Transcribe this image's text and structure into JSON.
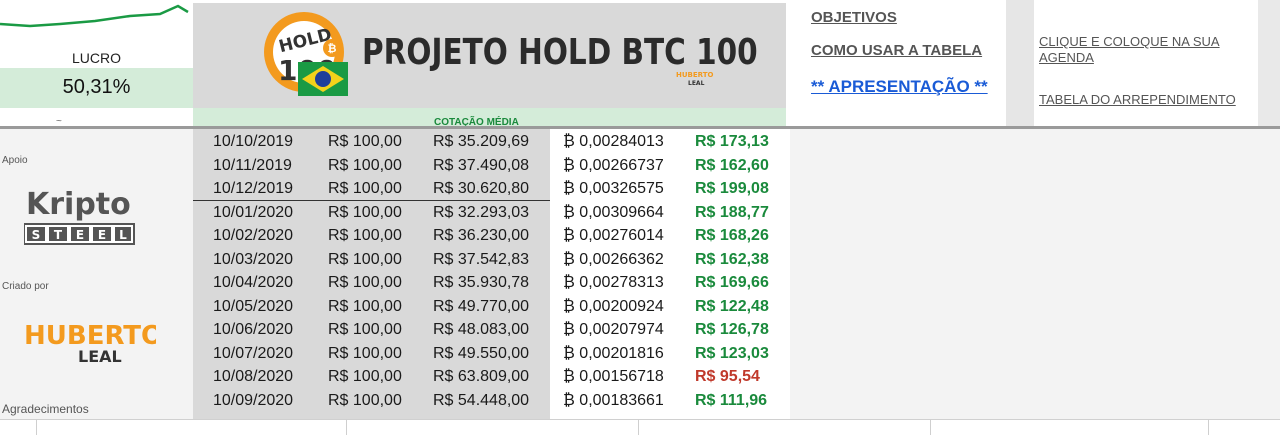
{
  "summary": {
    "label": "LUCRO",
    "value": "50,31%",
    "cut_label": "~"
  },
  "banner": {
    "title": "PROJETO HOLD BTC 100",
    "logo_text_top": "HOLD",
    "logo_text_bottom": "100",
    "mini_logo_top": "HUBERTO",
    "mini_logo_bottom": "LEAL",
    "column_header": "COTAÇÃO MÉDIA"
  },
  "links": {
    "objetivos": "OBJETIVOS",
    "como_usar": "COMO USAR A TABELA",
    "apresentacao": "** APRESENTAÇÃO **",
    "agenda": "CLIQUE E COLOQUE NA SUA AGENDA",
    "arrependimento": "TABELA DO ARREPENDIMENTO"
  },
  "sidebar": {
    "apoio": "Apoio",
    "criado_por": "Criado por",
    "agradecimentos": "Agradecimentos",
    "kripto_word": "Kripto",
    "steel_letters": [
      "S",
      "T",
      "E",
      "E",
      "L"
    ],
    "huberto_word": "HUBERTO",
    "leal_word": "LEAL"
  },
  "rows": [
    {
      "date": "10/10/2019",
      "aporte": "R$ 100,00",
      "cotacao": "R$ 35.209,69",
      "btc": "0,00284013",
      "valor": "R$ 173,13",
      "status": "pos"
    },
    {
      "date": "10/11/2019",
      "aporte": "R$ 100,00",
      "cotacao": "R$ 37.490,08",
      "btc": "0,00266737",
      "valor": "R$ 162,60",
      "status": "pos"
    },
    {
      "date": "10/12/2019",
      "aporte": "R$ 100,00",
      "cotacao": "R$ 30.620,80",
      "btc": "0,00326575",
      "valor": "R$ 199,08",
      "status": "pos"
    },
    {
      "date": "10/01/2020",
      "aporte": "R$ 100,00",
      "cotacao": "R$ 32.293,03",
      "btc": "0,00309664",
      "valor": "R$ 188,77",
      "status": "pos"
    },
    {
      "date": "10/02/2020",
      "aporte": "R$ 100,00",
      "cotacao": "R$ 36.230,00",
      "btc": "0,00276014",
      "valor": "R$ 168,26",
      "status": "pos"
    },
    {
      "date": "10/03/2020",
      "aporte": "R$ 100,00",
      "cotacao": "R$ 37.542,83",
      "btc": "0,00266362",
      "valor": "R$ 162,38",
      "status": "pos"
    },
    {
      "date": "10/04/2020",
      "aporte": "R$ 100,00",
      "cotacao": "R$ 35.930,78",
      "btc": "0,00278313",
      "valor": "R$ 169,66",
      "status": "pos"
    },
    {
      "date": "10/05/2020",
      "aporte": "R$ 100,00",
      "cotacao": "R$ 49.770,00",
      "btc": "0,00200924",
      "valor": "R$ 122,48",
      "status": "pos"
    },
    {
      "date": "10/06/2020",
      "aporte": "R$ 100,00",
      "cotacao": "R$ 48.083,00",
      "btc": "0,00207974",
      "valor": "R$ 126,78",
      "status": "pos"
    },
    {
      "date": "10/07/2020",
      "aporte": "R$ 100,00",
      "cotacao": "R$ 49.550,00",
      "btc": "0,00201816",
      "valor": "R$ 123,03",
      "status": "pos"
    },
    {
      "date": "10/08/2020",
      "aporte": "R$ 100,00",
      "cotacao": "R$ 63.809,00",
      "btc": "0,00156718",
      "valor": "R$ 95,54",
      "status": "neg"
    },
    {
      "date": "10/09/2020",
      "aporte": "R$ 100,00",
      "cotacao": "R$ 54.448,00",
      "btc": "0,00183661",
      "valor": "R$ 111,96",
      "status": "pos"
    }
  ],
  "btc_symbol": "₿",
  "colors": {
    "positive": "#1a8a3c",
    "negative": "#c0392b",
    "link_blue": "#1a5bd6",
    "accent_orange": "#f39a1e",
    "header_green": "#d4ecd9"
  },
  "icons": {
    "sparkline": "profit-sparkline-icon",
    "logo": "hold-btc-logo-icon",
    "flag": "brazil-flag-icon"
  }
}
